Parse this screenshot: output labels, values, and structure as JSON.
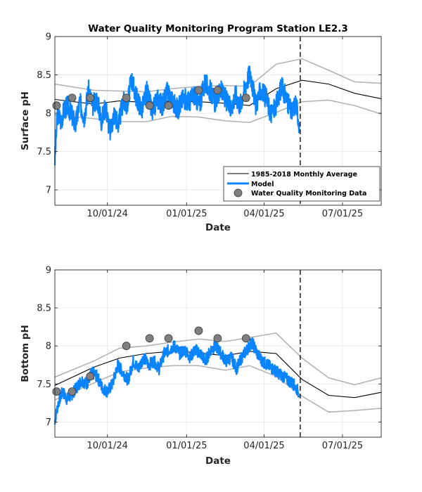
{
  "figure_title": "Water Quality Monitoring Program Station LE2.3",
  "colors": {
    "model": "#0a84ff",
    "average": "#000000",
    "envelope": "#b0b0b0",
    "observations": "#7f7f7f",
    "grid": "#e6e6e6",
    "cutoff": "#000000"
  },
  "chart_data": [
    {
      "type": "line",
      "title": "Water Quality Monitoring Program Station LE2.3",
      "xlabel": "Date",
      "ylabel": "Surface pH",
      "xlim": [
        "2024-08-01",
        "2025-08-15"
      ],
      "ylim": [
        6.8,
        9.0
      ],
      "xticks": [
        "2024-10-01",
        "2025-01-01",
        "2025-04-01",
        "2025-07-01"
      ],
      "xticklabels": [
        "10/01/24",
        "01/01/25",
        "04/01/25",
        "07/01/25"
      ],
      "yticks": [
        7,
        7.5,
        8,
        8.5,
        9
      ],
      "yticklabels": [
        "7",
        "7.5",
        "8",
        "8.5",
        "9"
      ],
      "grid": true,
      "legend_position": "bottom-right",
      "forecast_cutoff": "2025-05-13",
      "series": [
        {
          "name": "1985-2018 Monthly Average",
          "style": "line",
          "x": [
            "2024-08-01",
            "2024-09-15",
            "2024-10-15",
            "2024-11-15",
            "2024-12-15",
            "2025-01-15",
            "2025-02-15",
            "2025-03-15",
            "2025-04-15",
            "2025-05-15",
            "2025-06-15",
            "2025-07-15",
            "2025-08-15"
          ],
          "y": [
            8.18,
            8.12,
            8.16,
            8.14,
            8.16,
            8.15,
            8.13,
            8.1,
            8.32,
            8.43,
            8.38,
            8.26,
            8.19
          ]
        },
        {
          "name": "envelope-upper",
          "style": "envelope",
          "x": [
            "2024-08-01",
            "2024-09-15",
            "2024-10-15",
            "2024-11-15",
            "2024-12-15",
            "2025-01-15",
            "2025-02-15",
            "2025-03-15",
            "2025-04-15",
            "2025-05-15",
            "2025-06-15",
            "2025-07-15",
            "2025-08-15"
          ],
          "y": [
            8.38,
            8.3,
            8.29,
            8.28,
            8.32,
            8.35,
            8.36,
            8.35,
            8.64,
            8.71,
            8.56,
            8.41,
            8.39
          ]
        },
        {
          "name": "envelope-lower",
          "style": "envelope",
          "x": [
            "2024-08-01",
            "2024-09-15",
            "2024-10-15",
            "2024-11-15",
            "2024-12-15",
            "2025-01-15",
            "2025-02-15",
            "2025-03-15",
            "2025-04-15",
            "2025-05-15",
            "2025-06-15",
            "2025-07-15",
            "2025-08-15"
          ],
          "y": [
            7.98,
            7.93,
            7.89,
            7.89,
            7.96,
            7.95,
            7.9,
            7.88,
            8.01,
            8.15,
            8.17,
            8.1,
            7.99
          ]
        },
        {
          "name": "Model",
          "style": "model",
          "x": [
            "2024-08-01",
            "2024-08-04",
            "2024-08-08",
            "2024-08-12",
            "2024-08-16",
            "2024-08-20",
            "2024-08-25",
            "2024-08-30",
            "2024-09-04",
            "2024-09-09",
            "2024-09-14",
            "2024-09-19",
            "2024-09-24",
            "2024-09-29",
            "2024-10-04",
            "2024-10-09",
            "2024-10-14",
            "2024-10-19",
            "2024-10-24",
            "2024-10-29",
            "2024-11-04",
            "2024-11-10",
            "2024-11-16",
            "2024-11-22",
            "2024-11-28",
            "2024-12-04",
            "2024-12-10",
            "2024-12-16",
            "2024-12-22",
            "2024-12-28",
            "2025-01-04",
            "2025-01-10",
            "2025-01-16",
            "2025-01-22",
            "2025-01-28",
            "2025-02-03",
            "2025-02-09",
            "2025-02-15",
            "2025-02-21",
            "2025-02-27",
            "2025-03-04",
            "2025-03-10",
            "2025-03-16",
            "2025-03-22",
            "2025-03-28",
            "2025-04-03",
            "2025-04-09",
            "2025-04-15",
            "2025-04-21",
            "2025-04-27",
            "2025-05-03",
            "2025-05-08",
            "2025-05-12"
          ],
          "y": [
            7.4,
            8.0,
            7.9,
            8.05,
            8.1,
            8.0,
            7.85,
            8.15,
            7.95,
            8.3,
            8.1,
            8.2,
            7.9,
            8.1,
            7.75,
            8.0,
            7.85,
            8.15,
            8.1,
            8.45,
            8.2,
            8.05,
            8.3,
            8.0,
            8.2,
            8.1,
            8.3,
            8.15,
            8.05,
            8.2,
            8.15,
            8.25,
            8.1,
            8.4,
            8.3,
            8.15,
            8.3,
            8.2,
            8.05,
            8.25,
            8.1,
            8.35,
            8.55,
            8.1,
            8.3,
            8.2,
            8.0,
            8.1,
            8.35,
            8.2,
            8.0,
            8.15,
            7.85
          ],
          "amplitude": 0.14,
          "noise_seed": 3
        },
        {
          "name": "Water Quality Monitoring Data",
          "style": "points",
          "x": [
            "2024-08-03",
            "2024-08-21",
            "2024-09-11",
            "2024-10-23",
            "2024-11-19",
            "2024-12-11",
            "2025-01-15",
            "2025-02-06",
            "2025-03-11"
          ],
          "y": [
            8.1,
            8.2,
            8.2,
            8.2,
            8.1,
            8.1,
            8.3,
            8.3,
            8.2
          ]
        }
      ]
    },
    {
      "type": "line",
      "title": "",
      "xlabel": "Date",
      "ylabel": "Bottom pH",
      "xlim": [
        "2024-08-01",
        "2025-08-15"
      ],
      "ylim": [
        6.8,
        9.0
      ],
      "xticks": [
        "2024-10-01",
        "2025-01-01",
        "2025-04-01",
        "2025-07-01"
      ],
      "xticklabels": [
        "10/01/24",
        "01/01/25",
        "04/01/25",
        "07/01/25"
      ],
      "yticks": [
        7,
        7.5,
        8,
        8.5,
        9
      ],
      "yticklabels": [
        "7",
        "7.5",
        "8",
        "8.5",
        "9"
      ],
      "grid": true,
      "forecast_cutoff": "2025-05-13",
      "series": [
        {
          "name": "1985-2018 Monthly Average",
          "style": "line",
          "x": [
            "2024-08-01",
            "2024-09-15",
            "2024-10-15",
            "2024-11-15",
            "2024-12-15",
            "2025-01-15",
            "2025-02-15",
            "2025-03-15",
            "2025-04-15",
            "2025-05-15",
            "2025-06-15",
            "2025-07-15",
            "2025-08-15"
          ],
          "y": [
            7.48,
            7.72,
            7.84,
            7.9,
            7.93,
            7.91,
            7.87,
            7.93,
            7.9,
            7.56,
            7.35,
            7.32,
            7.39
          ]
        },
        {
          "name": "envelope-upper",
          "style": "envelope",
          "x": [
            "2024-08-01",
            "2024-09-15",
            "2024-10-15",
            "2024-11-15",
            "2024-12-15",
            "2025-01-15",
            "2025-02-15",
            "2025-03-15",
            "2025-04-15",
            "2025-05-15",
            "2025-06-15",
            "2025-07-15",
            "2025-08-15"
          ],
          "y": [
            7.59,
            7.8,
            7.97,
            8.0,
            8.05,
            8.09,
            8.06,
            8.11,
            8.17,
            7.84,
            7.58,
            7.49,
            7.58
          ]
        },
        {
          "name": "envelope-lower",
          "style": "envelope",
          "x": [
            "2024-08-01",
            "2024-09-15",
            "2024-10-15",
            "2024-11-15",
            "2024-12-15",
            "2025-01-15",
            "2025-02-15",
            "2025-03-15",
            "2025-04-15",
            "2025-05-15",
            "2025-06-15",
            "2025-07-15",
            "2025-08-15"
          ],
          "y": [
            7.29,
            7.51,
            7.66,
            7.71,
            7.74,
            7.74,
            7.68,
            7.74,
            7.6,
            7.34,
            7.13,
            7.15,
            7.18
          ]
        },
        {
          "name": "Model",
          "style": "model",
          "x": [
            "2024-08-01",
            "2024-08-05",
            "2024-08-10",
            "2024-08-15",
            "2024-08-20",
            "2024-08-26",
            "2024-09-01",
            "2024-09-07",
            "2024-09-13",
            "2024-09-19",
            "2024-09-25",
            "2024-10-01",
            "2024-10-07",
            "2024-10-13",
            "2024-10-19",
            "2024-10-25",
            "2024-10-31",
            "2024-11-06",
            "2024-11-12",
            "2024-11-18",
            "2024-11-24",
            "2024-11-30",
            "2024-12-06",
            "2024-12-12",
            "2024-12-18",
            "2024-12-24",
            "2024-12-30",
            "2025-01-05",
            "2025-01-11",
            "2025-01-17",
            "2025-01-23",
            "2025-01-29",
            "2025-02-04",
            "2025-02-10",
            "2025-02-16",
            "2025-02-22",
            "2025-02-28",
            "2025-03-06",
            "2025-03-12",
            "2025-03-18",
            "2025-03-24",
            "2025-03-30",
            "2025-04-05",
            "2025-04-11",
            "2025-04-17",
            "2025-04-23",
            "2025-04-29",
            "2025-05-05",
            "2025-05-12"
          ],
          "y": [
            7.02,
            7.25,
            7.4,
            7.3,
            7.35,
            7.45,
            7.55,
            7.5,
            7.65,
            7.6,
            7.45,
            7.4,
            7.5,
            7.75,
            7.65,
            7.55,
            7.8,
            7.7,
            7.85,
            7.75,
            7.8,
            7.7,
            7.9,
            7.95,
            8.0,
            7.9,
            7.95,
            7.85,
            7.95,
            7.9,
            7.8,
            7.95,
            8.0,
            7.9,
            7.8,
            7.85,
            7.7,
            7.85,
            7.95,
            8.05,
            7.9,
            7.8,
            7.75,
            7.7,
            7.65,
            7.6,
            7.55,
            7.5,
            7.38
          ],
          "amplitude": 0.08,
          "noise_seed": 7
        },
        {
          "name": "Water Quality Monitoring Data",
          "style": "points",
          "x": [
            "2024-08-03",
            "2024-08-21",
            "2024-09-11",
            "2024-10-23",
            "2024-11-19",
            "2024-12-11",
            "2025-01-15",
            "2025-02-06",
            "2025-03-11"
          ],
          "y": [
            7.4,
            7.4,
            7.6,
            8.0,
            8.1,
            8.1,
            8.2,
            8.1,
            8.1
          ]
        }
      ]
    }
  ]
}
